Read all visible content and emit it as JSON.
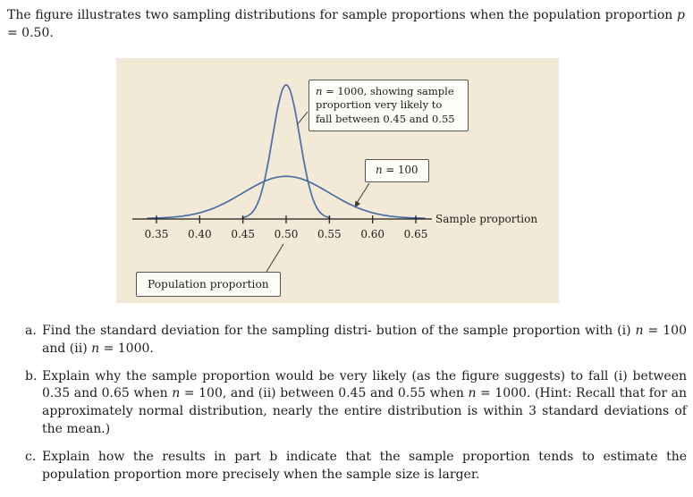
{
  "intro": {
    "segments": [
      {
        "t": "The figure illustrates two sampling distributions for sample proportions when the population proportion "
      },
      {
        "t": "p",
        "i": true
      },
      {
        "t": " = 0.50."
      }
    ]
  },
  "figure": {
    "background": "#f2ead6",
    "curve_color": "#4a6fa8",
    "axis_label": "Sample proportion",
    "population_label": "Population proportion",
    "ticks": [
      "0.35",
      "0.40",
      "0.45",
      "0.50",
      "0.55",
      "0.60",
      "0.65"
    ],
    "callout_n1000": {
      "segments": [
        {
          "t": "n",
          "i": true
        },
        {
          "t": " = 1000, showing sample proportion very likely to fall between 0.45 and 0.55"
        }
      ]
    },
    "callout_n100": {
      "segments": [
        {
          "t": "n",
          "i": true
        },
        {
          "t": " = 100"
        }
      ]
    }
  },
  "questions": [
    {
      "label": "a.",
      "segments": [
        {
          "t": "Find the standard deviation for the sampling distri- bution of the sample proportion with (i) "
        },
        {
          "t": "n",
          "i": true
        },
        {
          "t": " = 100 and (ii) "
        },
        {
          "t": "n",
          "i": true
        },
        {
          "t": " = 1000."
        }
      ]
    },
    {
      "label": "b.",
      "segments": [
        {
          "t": "Explain why the sample proportion would be very likely (as the figure suggests) to fall (i) between 0.35 and 0.65 when "
        },
        {
          "t": "n",
          "i": true
        },
        {
          "t": " = 100, and (ii) between 0.45 and 0.55 when "
        },
        {
          "t": "n",
          "i": true
        },
        {
          "t": " = 1000. (Hint: Recall that for an approximately normal distribution, nearly the entire distribution is within 3 standard deviations of the mean.)"
        }
      ]
    },
    {
      "label": "c.",
      "segments": [
        {
          "t": "Explain how the results in part b indicate that the sample proportion tends to estimate the population proportion more precisely when the sample size is larger."
        }
      ]
    }
  ],
  "chart_data": {
    "type": "line",
    "title": "Two sampling distributions of the sample proportion when p = 0.50",
    "xlabel": "Sample proportion",
    "x_ticks": [
      0.35,
      0.4,
      0.45,
      0.5,
      0.55,
      0.6,
      0.65
    ],
    "xlim": [
      0.33,
      0.67
    ],
    "grid": false,
    "legend": "none",
    "series": [
      {
        "name": "n = 1000",
        "shape": "normal",
        "mean": 0.5,
        "sd": 0.0158,
        "likely_range": [
          0.45,
          0.55
        ]
      },
      {
        "name": "n = 100",
        "shape": "normal",
        "mean": 0.5,
        "sd": 0.05,
        "likely_range": [
          0.35,
          0.65
        ]
      }
    ],
    "annotations": [
      {
        "text": "n = 1000, showing sample proportion very likely to fall between 0.45 and 0.55",
        "points_to": "tall narrow curve"
      },
      {
        "text": "n = 100",
        "points_to": "short wide curve"
      },
      {
        "text": "Population proportion",
        "points_to": 0.5
      }
    ]
  }
}
